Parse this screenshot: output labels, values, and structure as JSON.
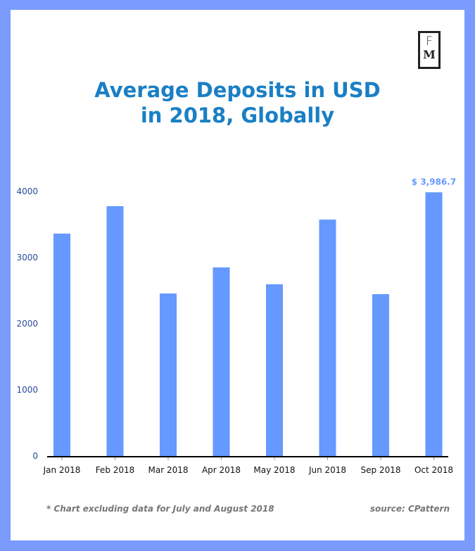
{
  "logo": {
    "top": "F",
    "bottom": "M"
  },
  "chart_data": {
    "type": "bar",
    "title": "Average Deposits in USD in 2018, Globally",
    "title_lines": [
      "Average Deposits in USD",
      "in 2018, Globally"
    ],
    "categories": [
      "Jan 2018",
      "Feb 2018",
      "Mar 2018",
      "Apr 2018",
      "May 2018",
      "Jun 2018",
      "Sep 2018",
      "Oct 2018"
    ],
    "values": [
      3362,
      3777,
      2457,
      2851,
      2596,
      3574,
      2447,
      3986.7
    ],
    "annotation": {
      "index": 7,
      "text": "$ 3,986.7"
    },
    "yticks": [
      "0",
      "1000",
      "2000",
      "3000",
      "4000"
    ],
    "ylim": [
      0,
      4000
    ],
    "xlabel": "",
    "ylabel": "",
    "grid": false,
    "colors": {
      "bar": "#6699ff",
      "axis_text": "#2a4a9a",
      "annotation": "#6699ff"
    }
  },
  "footer": {
    "note": "* Chart excluding data for July and August 2018",
    "source": "source: CPattern"
  }
}
